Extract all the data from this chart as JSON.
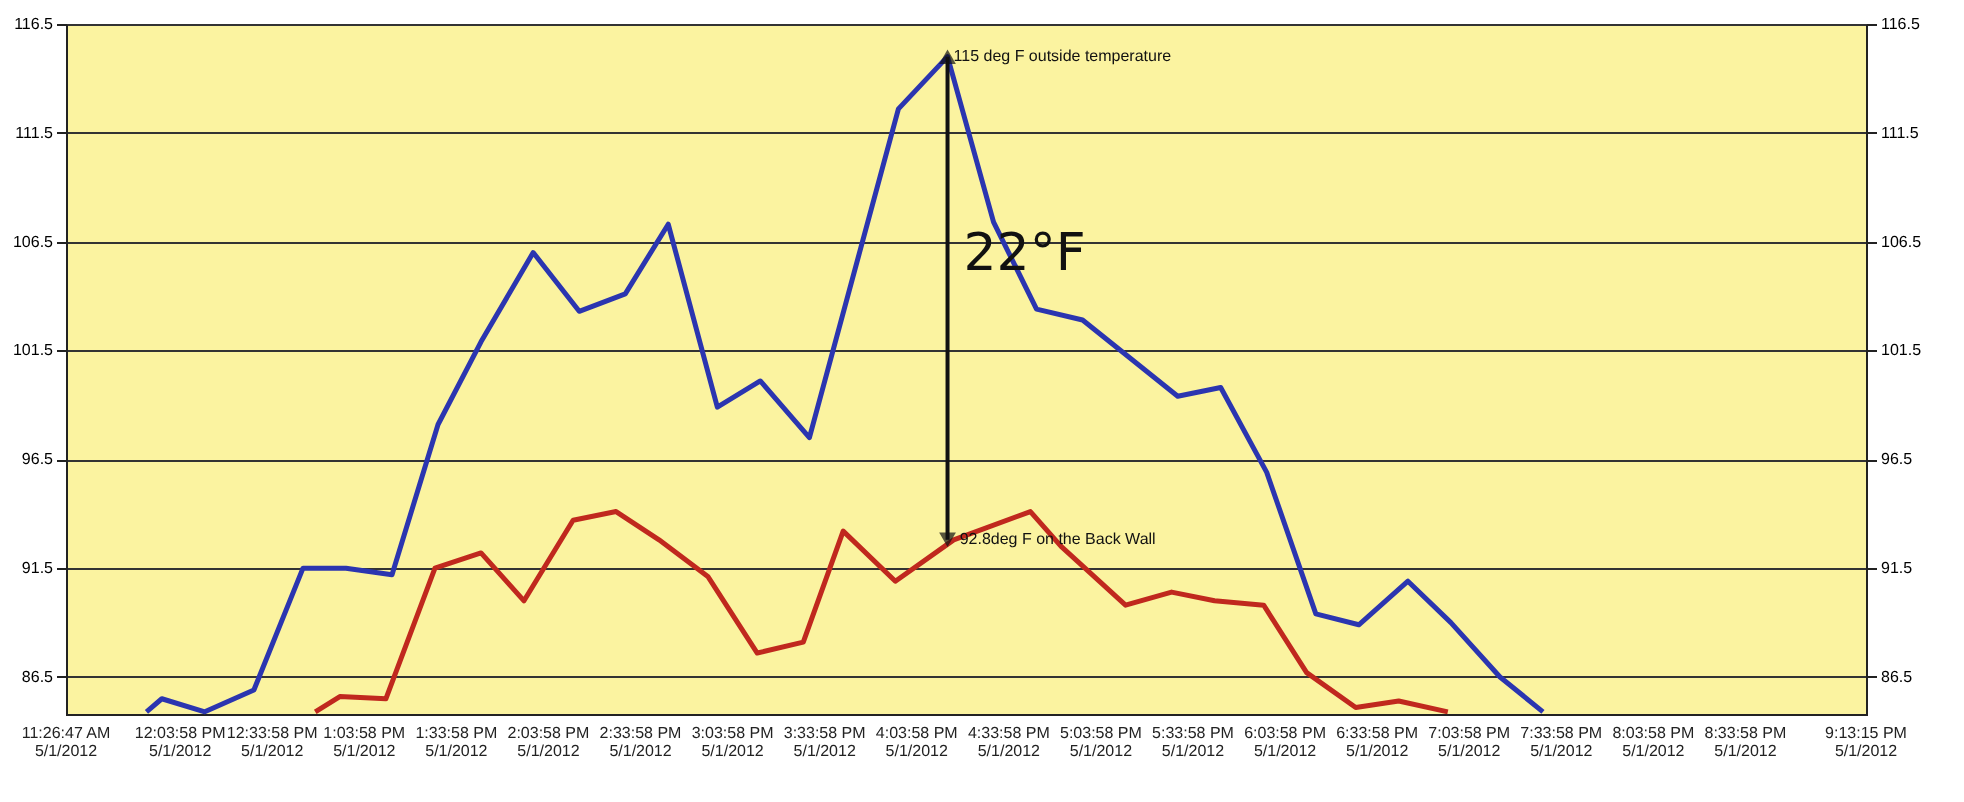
{
  "chart_data": {
    "type": "line",
    "xlim": [
      "2012-05-01T11:26:47",
      "2012-05-01T21:13:15"
    ],
    "xticks": [
      {
        "value": "2012-05-01T11:26:47",
        "label": "11:26:47 AM\n5/1/2012"
      },
      {
        "value": "2012-05-01T12:03:58",
        "label": "12:03:58 PM\n5/1/2012"
      },
      {
        "value": "2012-05-01T12:33:58",
        "label": "12:33:58 PM\n5/1/2012"
      },
      {
        "value": "2012-05-01T13:03:58",
        "label": "1:03:58 PM\n5/1/2012"
      },
      {
        "value": "2012-05-01T13:33:58",
        "label": "1:33:58 PM\n5/1/2012"
      },
      {
        "value": "2012-05-01T14:03:58",
        "label": "2:03:58 PM\n5/1/2012"
      },
      {
        "value": "2012-05-01T14:33:58",
        "label": "2:33:58 PM\n5/1/2012"
      },
      {
        "value": "2012-05-01T15:03:58",
        "label": "3:03:58 PM\n5/1/2012"
      },
      {
        "value": "2012-05-01T15:33:58",
        "label": "3:33:58 PM\n5/1/2012"
      },
      {
        "value": "2012-05-01T16:03:58",
        "label": "4:03:58 PM\n5/1/2012"
      },
      {
        "value": "2012-05-01T16:33:58",
        "label": "4:33:58 PM\n5/1/2012"
      },
      {
        "value": "2012-05-01T17:03:58",
        "label": "5:03:58 PM\n5/1/2012"
      },
      {
        "value": "2012-05-01T17:33:58",
        "label": "5:33:58 PM\n5/1/2012"
      },
      {
        "value": "2012-05-01T18:03:58",
        "label": "6:03:58 PM\n5/1/2012"
      },
      {
        "value": "2012-05-01T18:33:58",
        "label": "6:33:58 PM\n5/1/2012"
      },
      {
        "value": "2012-05-01T19:03:58",
        "label": "7:03:58 PM\n5/1/2012"
      },
      {
        "value": "2012-05-01T19:33:58",
        "label": "7:33:58 PM\n5/1/2012"
      },
      {
        "value": "2012-05-01T20:03:58",
        "label": "8:03:58 PM\n5/1/2012"
      },
      {
        "value": "2012-05-01T20:33:58",
        "label": "8:33:58 PM\n5/1/2012"
      },
      {
        "value": "2012-05-01T21:13:15",
        "label": "9:13:15 PM\n5/1/2012"
      }
    ],
    "ylim": [
      84.8,
      116.5
    ],
    "yticks": [
      86.5,
      91.5,
      96.5,
      101.5,
      106.5,
      111.5,
      116.5
    ],
    "y2lim": [
      84.8,
      116.5
    ],
    "y2ticks": [
      86.5,
      91.5,
      96.5,
      101.5,
      106.5,
      111.5,
      116.5
    ],
    "grid": "y",
    "marker": "none",
    "line_style": "solid",
    "series": [
      {
        "color": "#2b35b0",
        "x": [
          "2012-05-01T11:53",
          "2012-05-01T11:58",
          "2012-05-01T12:12",
          "2012-05-01T12:28",
          "2012-05-01T12:44",
          "2012-05-01T12:58",
          "2012-05-01T13:13",
          "2012-05-01T13:28",
          "2012-05-01T13:42",
          "2012-05-01T13:59",
          "2012-05-01T14:14",
          "2012-05-01T14:29",
          "2012-05-01T14:43",
          "2012-05-01T14:59",
          "2012-05-01T15:13",
          "2012-05-01T15:29",
          "2012-05-01T15:58",
          "2012-05-01T16:14",
          "2012-05-01T16:29",
          "2012-05-01T16:43",
          "2012-05-01T16:58",
          "2012-05-01T17:29",
          "2012-05-01T17:43",
          "2012-05-01T17:58",
          "2012-05-01T18:14",
          "2012-05-01T18:28",
          "2012-05-01T18:44",
          "2012-05-01T18:58",
          "2012-05-01T19:14",
          "2012-05-01T19:28"
        ],
        "values": [
          84.9,
          85.5,
          84.9,
          85.9,
          91.5,
          91.5,
          91.2,
          98.1,
          101.9,
          106.0,
          103.3,
          104.1,
          107.3,
          98.9,
          100.1,
          97.5,
          112.6,
          115.0,
          107.4,
          103.4,
          102.9,
          99.4,
          99.8,
          95.9,
          89.4,
          88.9,
          90.9,
          89.0,
          86.5,
          84.9
        ]
      },
      {
        "color": "#c0281e",
        "x": [
          "2012-05-01T12:48",
          "2012-05-01T12:56",
          "2012-05-01T13:11",
          "2012-05-01T13:27",
          "2012-05-01T13:42",
          "2012-05-01T13:56",
          "2012-05-01T14:12",
          "2012-05-01T14:26",
          "2012-05-01T14:40",
          "2012-05-01T14:56",
          "2012-05-01T15:12",
          "2012-05-01T15:27",
          "2012-05-01T15:40",
          "2012-05-01T15:57",
          "2012-05-01T16:16",
          "2012-05-01T16:41",
          "2012-05-01T16:51",
          "2012-05-01T17:12",
          "2012-05-01T17:27",
          "2012-05-01T17:41",
          "2012-05-01T17:57",
          "2012-05-01T18:11",
          "2012-05-01T18:27",
          "2012-05-01T18:41",
          "2012-05-01T18:57"
        ],
        "values": [
          84.9,
          85.6,
          85.5,
          91.5,
          92.2,
          90.0,
          93.7,
          94.1,
          92.8,
          91.1,
          87.6,
          88.1,
          93.2,
          90.9,
          92.8,
          94.1,
          92.5,
          89.8,
          90.4,
          90.0,
          89.8,
          86.7,
          85.1,
          85.4,
          84.9
        ]
      }
    ],
    "annotations": [
      {
        "text": "115 deg F outside temperature",
        "x": "2012-05-01T16:14",
        "y": 115.0
      },
      {
        "text": "92.8deg F on the Back Wall",
        "x": "2012-05-01T16:16",
        "y": 92.8
      },
      "22°F"
    ]
  }
}
